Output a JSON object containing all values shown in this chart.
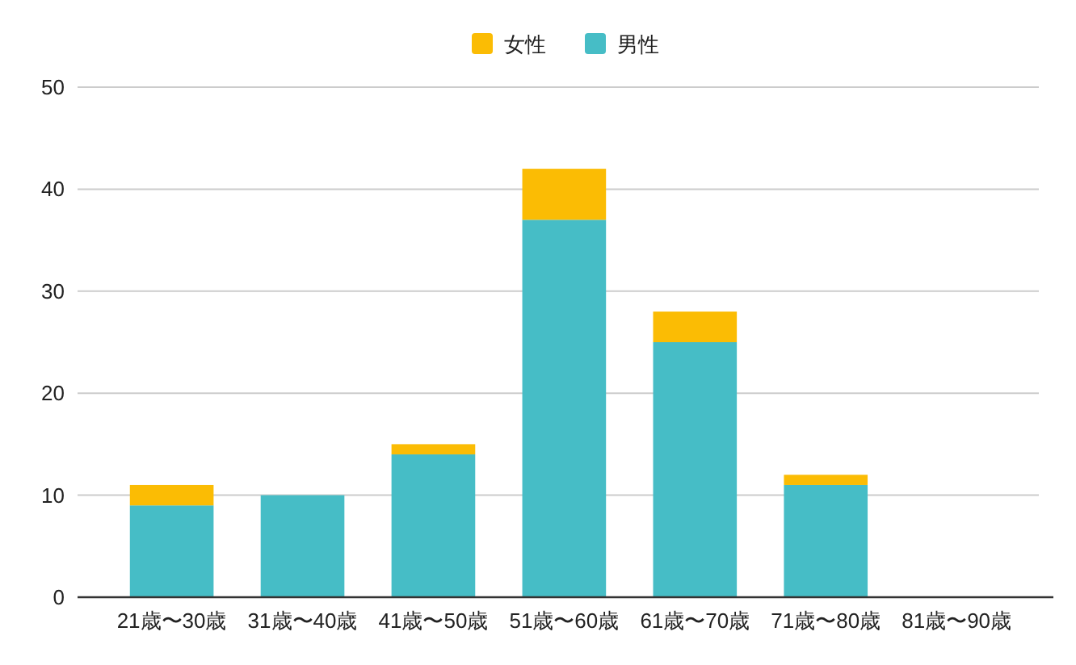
{
  "chart_data": {
    "type": "bar",
    "stacked": true,
    "categories": [
      "21歳〜30歳",
      "31歳〜40歳",
      "41歳〜50歳",
      "51歳〜60歳",
      "61歳〜70歳",
      "71歳〜80歳",
      "81歳〜90歳"
    ],
    "series": [
      {
        "name": "男性",
        "color": "#46bdc6",
        "values": [
          9,
          10,
          14,
          37,
          25,
          11,
          0
        ]
      },
      {
        "name": "女性",
        "color": "#fbbc04",
        "values": [
          2,
          0,
          1,
          5,
          3,
          1,
          0
        ]
      }
    ],
    "ylim": [
      0,
      50
    ],
    "yticks": [
      0,
      10,
      20,
      30,
      40,
      50
    ],
    "grid": "y",
    "legend": "top"
  }
}
